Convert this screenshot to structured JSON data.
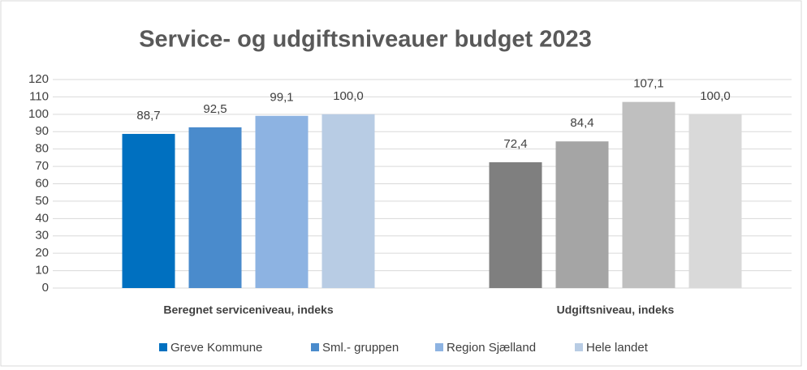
{
  "chart_data": {
    "type": "bar",
    "title": "Service- og udgiftsniveauer budget 2023",
    "categories": [
      "Beregnet serviceniveau, indeks",
      "Udgiftsniveau, indeks"
    ],
    "series": [
      {
        "name": "Greve Kommune",
        "color": "#0070c0",
        "colors": [
          "#0070c0",
          "#7f7f7f"
        ],
        "values": [
          88.7,
          72.4
        ],
        "value_labels": [
          "88,7",
          "72,4"
        ]
      },
      {
        "name": "Sml.- gruppen",
        "color": "#4a8bcc",
        "colors": [
          "#4a8bcc",
          "#a5a5a5"
        ],
        "values": [
          92.5,
          84.4
        ],
        "value_labels": [
          "92,5",
          "84,4"
        ]
      },
      {
        "name": "Region Sjælland",
        "color": "#8db3e2",
        "colors": [
          "#8db3e2",
          "#bfbfbf"
        ],
        "values": [
          99.1,
          107.1
        ],
        "value_labels": [
          "99,1",
          "107,1"
        ]
      },
      {
        "name": "Hele landet",
        "color": "#b8cce4",
        "colors": [
          "#b8cce4",
          "#d9d9d9"
        ],
        "values": [
          100.0,
          100.0
        ],
        "value_labels": [
          "100,0",
          "100,0"
        ]
      }
    ],
    "ylim": [
      0,
      120
    ],
    "yticks": [
      0,
      10,
      20,
      30,
      40,
      50,
      60,
      70,
      80,
      90,
      100,
      110,
      120
    ],
    "grid": true,
    "legend": "bottom"
  }
}
